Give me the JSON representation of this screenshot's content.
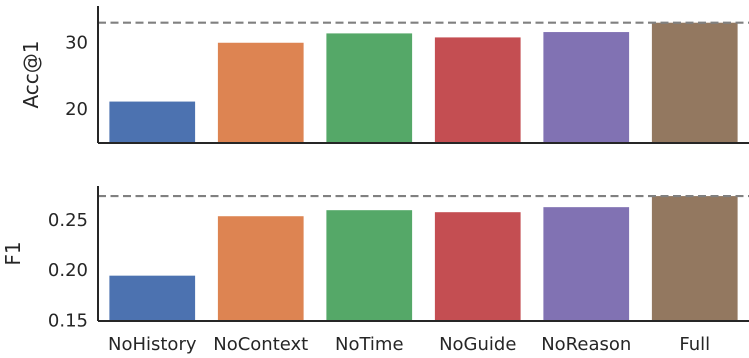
{
  "chart_data": {
    "type": "bar",
    "categories": [
      "NoHistory",
      "NoContext",
      "NoTime",
      "NoGuide",
      "NoReason",
      "Full"
    ],
    "colors": [
      "#4c72b0",
      "#dd8452",
      "#55a868",
      "#c44e52",
      "#8172b3",
      "#937860"
    ],
    "panels": [
      {
        "ylabel": "Acc@1",
        "ylim": [
          15,
          35.5
        ],
        "yticks": [
          "20",
          "30"
        ],
        "values": [
          21.2,
          30.0,
          31.4,
          30.8,
          31.6,
          33.0
        ],
        "reference_line": 33.0,
        "reference_style": "dashed"
      },
      {
        "ylabel": "F1",
        "ylim": [
          0.15,
          0.284
        ],
        "yticks": [
          "0.15",
          "0.20",
          "0.25"
        ],
        "values": [
          0.195,
          0.254,
          0.26,
          0.258,
          0.263,
          0.274
        ],
        "reference_line": 0.274,
        "reference_style": "dashed"
      }
    ],
    "grid": false,
    "legend": "none"
  }
}
